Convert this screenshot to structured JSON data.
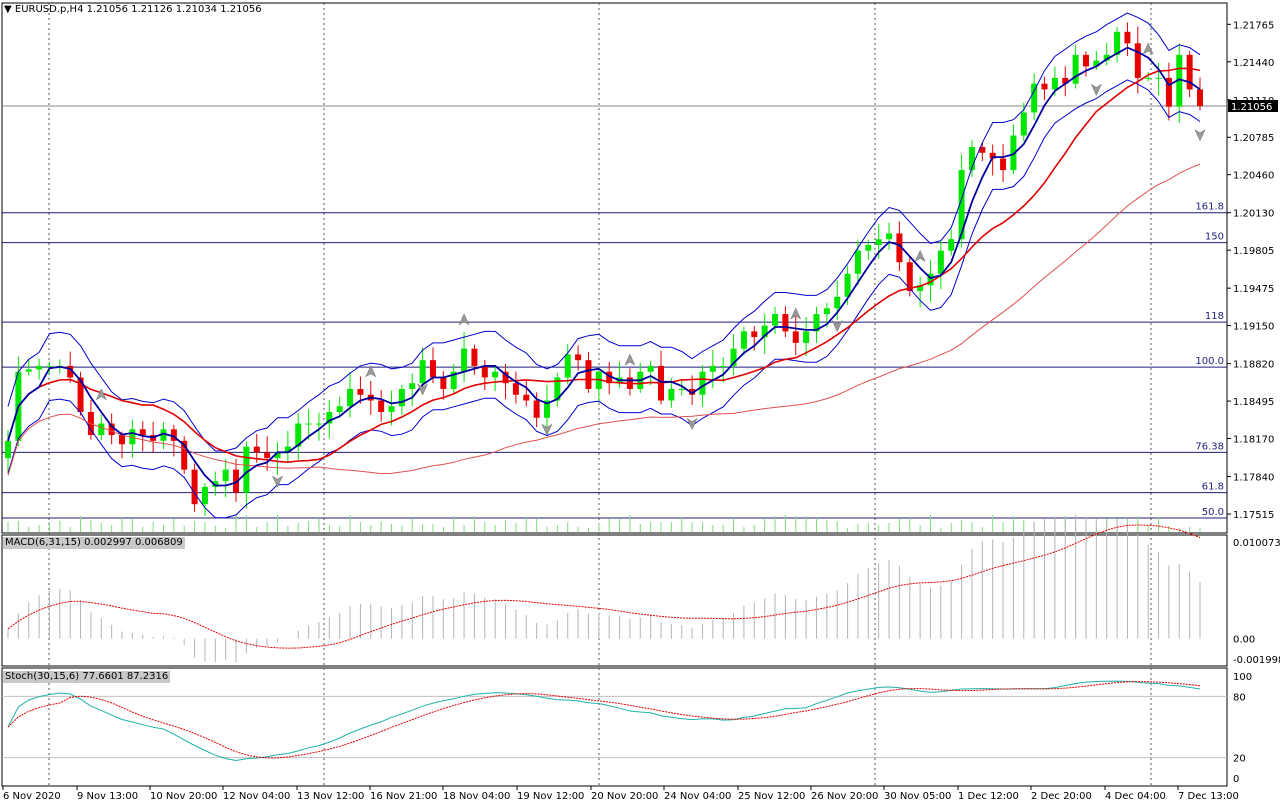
{
  "header": {
    "symbol": "EURUSD.p,H4",
    "ohlc": "1.21056 1.21126 1.21034 1.21056"
  },
  "macd": {
    "label": "MACD(6,31,15) 0.002997 0.006809",
    "scale_top": "0.010073",
    "scale_zero": "0.00",
    "scale_bottom": "-0.001998"
  },
  "stoch": {
    "label": "Stoch(30,15,6) 77.6601 87.2316",
    "levels": [
      "100",
      "80",
      "20",
      "0"
    ]
  },
  "price_axis": {
    "ticks": [
      "1.21765",
      "1.21440",
      "1.21110",
      "1.20785",
      "1.20460",
      "1.20130",
      "1.19805",
      "1.19475",
      "1.19150",
      "1.18820",
      "1.18495",
      "1.18170",
      "1.17840",
      "1.17515"
    ],
    "current_price": "1.21056"
  },
  "fib_levels": [
    "161.8",
    "150",
    "118",
    "100.0",
    "76.38",
    "61.8",
    "50.0"
  ],
  "time_axis": [
    "6 Nov 2020",
    "9 Nov 13:00",
    "10 Nov 20:00",
    "12 Nov 04:00",
    "13 Nov 12:00",
    "16 Nov 21:00",
    "18 Nov 04:00",
    "19 Nov 12:00",
    "20 Nov 20:00",
    "24 Nov 04:00",
    "25 Nov 12:00",
    "26 Nov 20:00",
    "30 Nov 05:00",
    "1 Dec 12:00",
    "2 Dec 20:00",
    "4 Dec 04:00",
    "7 Dec 13:00"
  ],
  "colors": {
    "bull": "#00e600",
    "bear": "#e60000",
    "bb": "#0000cc",
    "ma_fast": "#0000a0",
    "ma_slow": "#e00000",
    "fib": "#1f1f7a",
    "macd_hist": "#b4b4b4",
    "macd_signal": "#e00000",
    "stoch_main": "#20b2aa",
    "stoch_signal": "#e00000"
  },
  "chart_data": {
    "type": "candlestick",
    "price_axis_range": [
      1.1735,
      1.2195
    ],
    "grid": "time verticals dotted",
    "closes": [
      1.1815,
      1.1875,
      1.1877,
      1.188,
      1.188,
      1.188,
      1.187,
      1.184,
      1.182,
      1.183,
      1.182,
      1.1812,
      1.1825,
      1.182,
      1.1815,
      1.1825,
      1.1815,
      1.179,
      1.176,
      1.1775,
      1.178,
      1.179,
      1.177,
      1.181,
      1.1805,
      1.18,
      1.1805,
      1.181,
      1.183,
      1.183,
      1.183,
      1.184,
      1.1845,
      1.186,
      1.1855,
      1.185,
      1.184,
      1.1845,
      1.186,
      1.1865,
      1.1885,
      1.187,
      1.186,
      1.1875,
      1.1895,
      1.188,
      1.187,
      1.1875,
      1.1865,
      1.1855,
      1.185,
      1.1835,
      1.185,
      1.187,
      1.189,
      1.1885,
      1.186,
      1.1875,
      1.1865,
      1.187,
      1.186,
      1.1875,
      1.188,
      1.185,
      1.186,
      1.186,
      1.1855,
      1.1875,
      1.188,
      1.188,
      1.1895,
      1.191,
      1.1905,
      1.1915,
      1.1925,
      1.191,
      1.19,
      1.191,
      1.1925,
      1.193,
      1.194,
      1.196,
      1.198,
      1.1985,
      1.199,
      1.1995,
      1.197,
      1.1945,
      1.195,
      1.196,
      1.198,
      1.199,
      1.205,
      1.207,
      1.2065,
      1.206,
      1.205,
      1.208,
      1.21,
      1.2125,
      1.212,
      1.213,
      1.2125,
      1.215,
      1.214,
      1.2145,
      1.215,
      1.217,
      1.216,
      1.213,
      1.213,
      1.213,
      1.2105,
      1.215,
      1.212,
      1.21056
    ],
    "macd_hist_range": [
      -0.001998,
      0.010073
    ],
    "stoch_range": [
      0,
      100
    ]
  }
}
